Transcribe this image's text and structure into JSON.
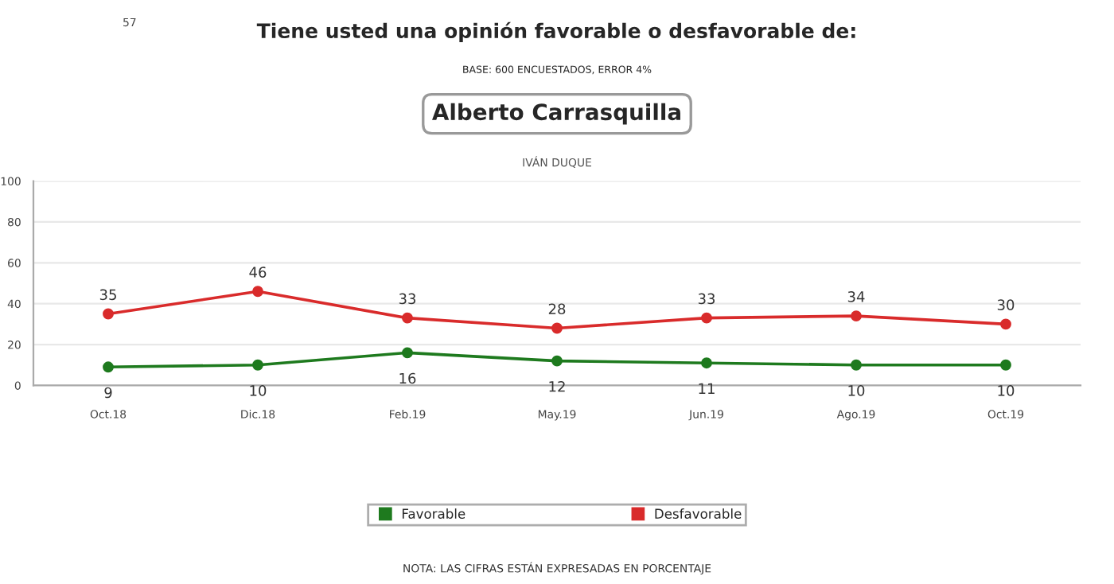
{
  "chart_data": {
    "type": "line",
    "title": "Tiene usted una opinión favorable o desfavorable de:",
    "subtitle": "BASE: 600 ENCUESTADOS, ERROR 4%",
    "annotations": [
      "57",
      "Alberto Carrasquilla",
      "IVÁN DUQUE",
      "NOTA: LAS CIFRAS ESTÁN EXPRESADAS EN PORCENTAJE"
    ],
    "categories": [
      "Oct.18",
      "Dic.18",
      "Feb.19",
      "May.19",
      "Jun.19",
      "Ago.19",
      "Oct.19"
    ],
    "series": [
      {
        "name": "Favorable",
        "color": "#1e7a1e",
        "values": [
          9,
          10,
          16,
          12,
          11,
          10,
          10
        ]
      },
      {
        "name": "Desfavorable",
        "color": "#d92b2b",
        "values": [
          35,
          46,
          33,
          28,
          33,
          34,
          30
        ]
      }
    ],
    "ylim": [
      0,
      100
    ],
    "yticks": [
      0,
      20,
      40,
      60,
      80,
      100
    ],
    "grid": "y",
    "legend": "bottom",
    "marker": "circle",
    "line_style": "solid",
    "data_labels": true
  }
}
